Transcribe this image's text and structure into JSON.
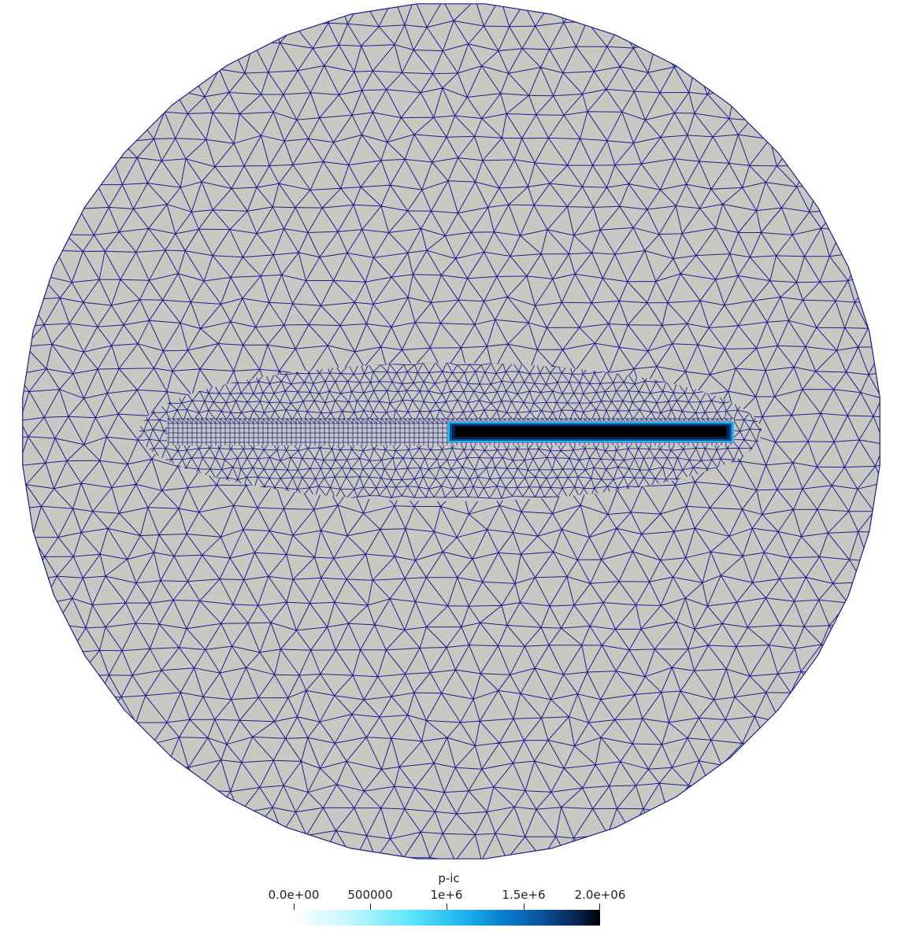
{
  "scene": {
    "background": "#ffffff",
    "domain_fill": "#c9c7c1",
    "mesh_edge_color": "#1b1f8a",
    "inclusion_field_colors": [
      "#000000",
      "#06224c",
      "#0b4e98",
      "#1eb5ee"
    ]
  },
  "colorbar": {
    "title": "p-ic",
    "range": [
      0,
      2000000
    ],
    "ticks": [
      {
        "value": 0,
        "label": "0.0e+00"
      },
      {
        "value": 500000,
        "label": "500000"
      },
      {
        "value": 1000000,
        "label": "1e+6"
      },
      {
        "value": 1500000,
        "label": "1.5e+6"
      },
      {
        "value": 2000000,
        "label": "2.0e+06"
      }
    ]
  }
}
